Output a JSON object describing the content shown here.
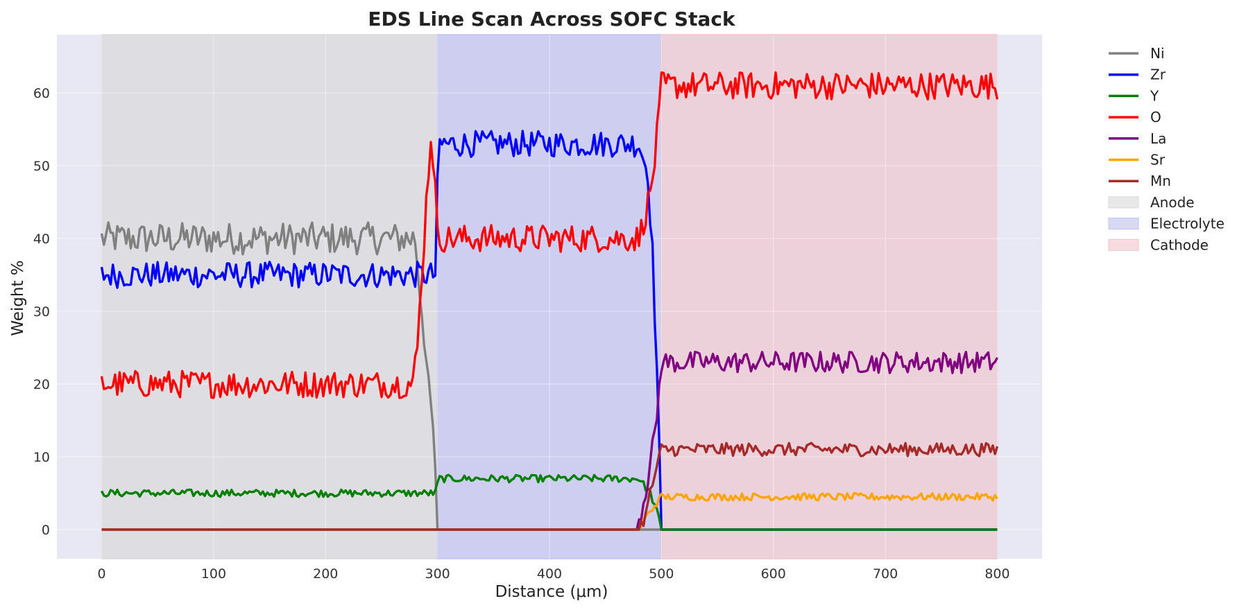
{
  "chart_data": {
    "type": "line",
    "title": "EDS Line Scan Across SOFC Stack",
    "xlabel": "Distance (μm)",
    "ylabel": "Weight %",
    "xlim": [
      -40,
      840
    ],
    "ylim": [
      -4,
      68
    ],
    "x_ticks": [
      0,
      100,
      200,
      300,
      400,
      500,
      600,
      700,
      800
    ],
    "y_ticks": [
      0,
      10,
      20,
      30,
      40,
      50,
      60
    ],
    "grid": true,
    "legend_position": "outside-right",
    "background_color": "#e8e8f4",
    "regions": [
      {
        "name": "Anode",
        "x_start": 0,
        "x_end": 300,
        "color": "#d8d8d8"
      },
      {
        "name": "Electrolyte",
        "x_start": 300,
        "x_end": 500,
        "color": "#c0c0f0"
      },
      {
        "name": "Cathode",
        "x_start": 500,
        "x_end": 800,
        "color": "#f0c4cc"
      }
    ],
    "series": [
      {
        "name": "Ni",
        "color": "#808080",
        "x": [
          0,
          280,
          283,
          288,
          292,
          296,
          300,
          800
        ],
        "y": [
          40,
          40,
          35,
          27,
          19,
          14,
          0,
          0
        ]
      },
      {
        "name": "Zr",
        "color": "#0000ff",
        "x": [
          0,
          298,
          301,
          480,
          488,
          492,
          496,
          500,
          800
        ],
        "y": [
          35,
          35,
          53,
          53,
          49,
          38,
          22,
          0,
          0
        ]
      },
      {
        "name": "Y",
        "color": "#008000",
        "x": [
          0,
          298,
          301,
          480,
          490,
          497,
          500,
          800
        ],
        "y": [
          5,
          5,
          7,
          7,
          5,
          2,
          0,
          0
        ]
      },
      {
        "name": "O",
        "color": "#ff0000",
        "x": [
          0,
          278,
          282,
          286,
          290,
          294,
          297,
          300,
          480,
          485,
          490,
          495,
          500,
          800
        ],
        "y": [
          20,
          20,
          25,
          35,
          45,
          54,
          50,
          40,
          40,
          43,
          46,
          52,
          61,
          61
        ]
      },
      {
        "name": "La",
        "color": "#800080",
        "x": [
          0,
          478,
          484,
          490,
          495,
          500,
          800
        ],
        "y": [
          0,
          0,
          4,
          9,
          14,
          23,
          23
        ]
      },
      {
        "name": "Sr",
        "color": "#ffa500",
        "x": [
          0,
          480,
          485,
          490,
          495,
          500,
          800
        ],
        "y": [
          0,
          0,
          1.5,
          2.5,
          3.5,
          4.5,
          4.5
        ]
      },
      {
        "name": "Mn",
        "color": "#a52a2a",
        "x": [
          0,
          480,
          486,
          490,
          495,
          500,
          800
        ],
        "y": [
          0,
          0,
          2,
          5,
          8,
          11,
          11
        ]
      }
    ],
    "noise": {
      "Ni": 2.2,
      "Zr": 1.8,
      "Y": 0.5,
      "O": 1.9,
      "La": 1.5,
      "Sr": 0.5,
      "Mn": 0.9
    }
  }
}
